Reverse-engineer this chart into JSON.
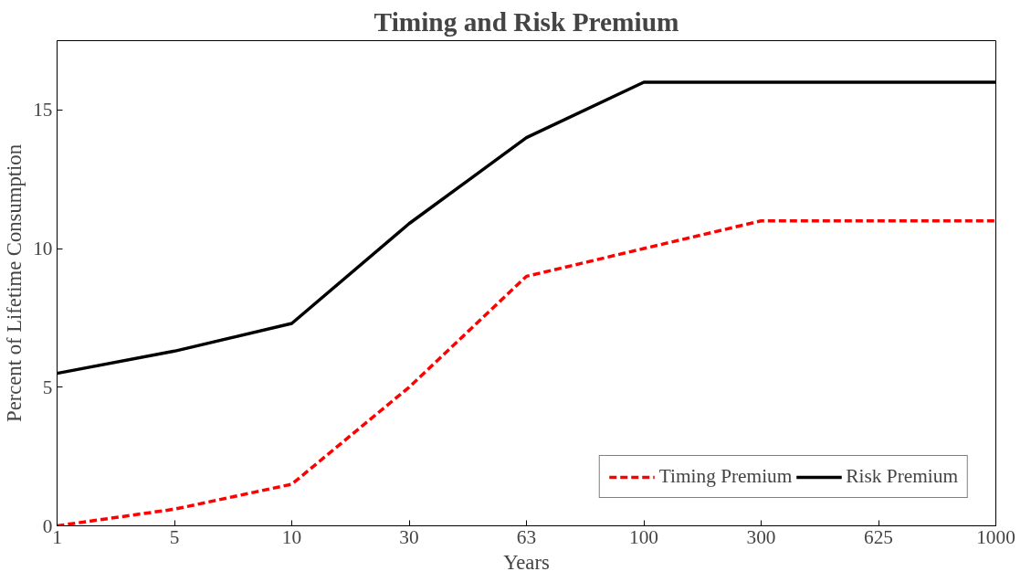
{
  "chart_data": {
    "type": "line",
    "title": "Timing and Risk Premium",
    "xlabel": "Years",
    "ylabel": "Percent of Lifetime Consumption",
    "categories": [
      "1",
      "5",
      "10",
      "30",
      "63",
      "100",
      "300",
      "625",
      "1000"
    ],
    "series": [
      {
        "name": "Timing Premium",
        "color": "#ff0000",
        "line_style": "dashed",
        "values": [
          0,
          0.6,
          1.5,
          5.0,
          9.0,
          10.0,
          11.0,
          11.0,
          11.0
        ]
      },
      {
        "name": "Risk Premium",
        "color": "#000000",
        "line_style": "solid",
        "values": [
          5.5,
          6.3,
          7.3,
          10.9,
          14.0,
          16.0,
          16.0,
          16.0,
          16.0
        ]
      }
    ],
    "ylim": [
      0,
      17.5
    ],
    "yticks": [
      0,
      5,
      10,
      15
    ],
    "grid": false,
    "legend": "bottom right",
    "marker": "none"
  }
}
